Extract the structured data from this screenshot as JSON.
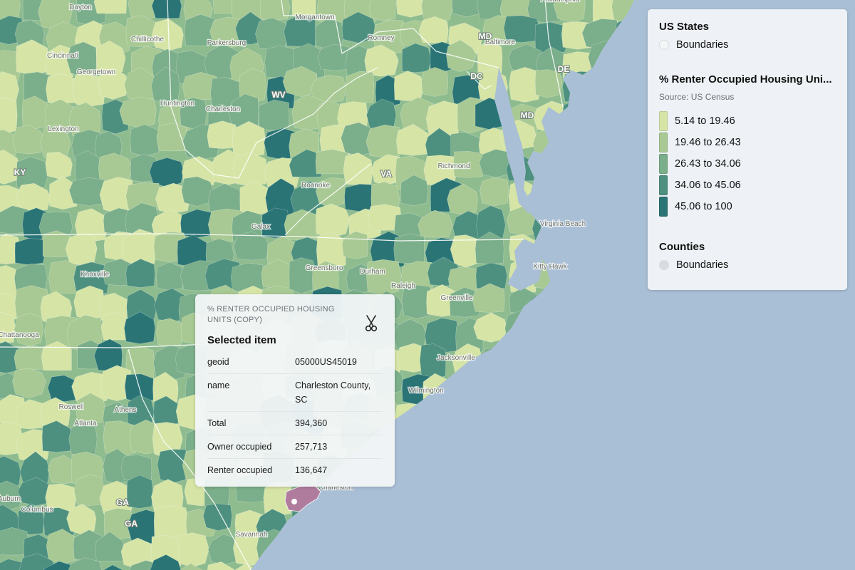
{
  "map": {
    "cities": [
      {
        "name": "Dayton"
      },
      {
        "name": "Morgantown"
      },
      {
        "name": "Philadelphia"
      },
      {
        "name": "Cincinnati"
      },
      {
        "name": "Chillicothe"
      },
      {
        "name": "Parkersburg"
      },
      {
        "name": "Romney"
      },
      {
        "name": "Baltimore"
      },
      {
        "name": "Georgetown"
      },
      {
        "name": "Huntington"
      },
      {
        "name": "Charleston"
      },
      {
        "name": "Lexington"
      },
      {
        "name": "Roanoke"
      },
      {
        "name": "Richmond"
      },
      {
        "name": "Galax"
      },
      {
        "name": "Virginia Beach"
      },
      {
        "name": "Kitty Hawk"
      },
      {
        "name": "Greensboro"
      },
      {
        "name": "Durham"
      },
      {
        "name": "Raleigh"
      },
      {
        "name": "Greenville"
      },
      {
        "name": "Knoxville"
      },
      {
        "name": "Chattanooga"
      },
      {
        "name": "Jacksonville"
      },
      {
        "name": "Wilmington"
      },
      {
        "name": "Roswell"
      },
      {
        "name": "Athens"
      },
      {
        "name": "Atlanta"
      },
      {
        "name": "Charleston"
      },
      {
        "name": "Auburn"
      },
      {
        "name": "Columbus"
      },
      {
        "name": "Savannah"
      }
    ],
    "state_labels": [
      "WV",
      "MD",
      "DC",
      "DE",
      "MD",
      "KY",
      "VA",
      "GA",
      "GA"
    ],
    "selected_county_color": "#b07c9e"
  },
  "legend": {
    "states_title": "US States",
    "states_toggle_label": "Boundaries",
    "layer_title": "% Renter Occupied Housing Uni...",
    "source": "Source: US Census",
    "bins": [
      {
        "label": "5.14 to 19.46",
        "color": "#d6e4a6"
      },
      {
        "label": "19.46 to 26.43",
        "color": "#a8c993"
      },
      {
        "label": "26.43 to 34.06",
        "color": "#7bae8a"
      },
      {
        "label": "34.06 to 45.06",
        "color": "#4d907f"
      },
      {
        "label": "45.06 to 100",
        "color": "#2a7476"
      }
    ],
    "counties_title": "Counties",
    "counties_toggle_label": "Boundaries"
  },
  "popup": {
    "layer_name": "% RENTER OCCUPIED HOUSING UNITS (COPY)",
    "title": "Selected item",
    "rows": [
      {
        "key": "geoid",
        "value": "05000US45019"
      },
      {
        "key": "name",
        "value": "Charleston County, SC"
      },
      {
        "key": "Total",
        "value": "394,360"
      },
      {
        "key": "Owner occupied",
        "value": "257,713"
      },
      {
        "key": "Renter occupied",
        "value": "136,647"
      }
    ]
  }
}
